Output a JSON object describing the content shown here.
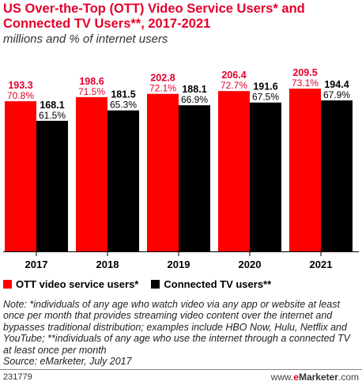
{
  "title": "US Over-the-Top (OTT) Video Service Users* and Connected TV Users**, 2017-2021",
  "subtitle": "millions and % of internet users",
  "chart_data": {
    "type": "bar",
    "categories": [
      "2017",
      "2018",
      "2019",
      "2020",
      "2021"
    ],
    "series": [
      {
        "name": "OTT video service users*",
        "color": "#ff0000",
        "label_color": "#e4002b",
        "values": [
          193.3,
          198.6,
          202.8,
          206.4,
          209.5
        ],
        "value_labels": [
          "193.3",
          "198.6",
          "202.8",
          "206.4",
          "209.5"
        ],
        "pct_labels": [
          "70.8%",
          "71.5%",
          "72.1%",
          "72.7%",
          "73.1%"
        ]
      },
      {
        "name": "Connected TV users**",
        "color": "#000000",
        "label_color": "#000000",
        "values": [
          168.1,
          181.5,
          188.1,
          191.6,
          194.4
        ],
        "value_labels": [
          "168.1",
          "181.5",
          "188.1",
          "191.6",
          "194.4"
        ],
        "pct_labels": [
          "61.5%",
          "65.3%",
          "66.9%",
          "67.5%",
          "67.9%"
        ]
      }
    ],
    "ylim": [
      0,
      230
    ],
    "grid": false,
    "legend": "bottom-left"
  },
  "note": "Note: *individuals of any age who watch video via any app or website at least once per month that provides streaming video content over the internet and bypasses traditional distribution; examples include HBO Now, Hulu, Netflix and YouTube; **individuals of any age who use the internet through a connected TV at least once per month",
  "source": "Source: eMarketer, July 2017",
  "footer": {
    "id": "231779",
    "brand_prefix": "www.",
    "brand_e": "e",
    "brand_name": "Marketer",
    "brand_suffix": ".com"
  }
}
